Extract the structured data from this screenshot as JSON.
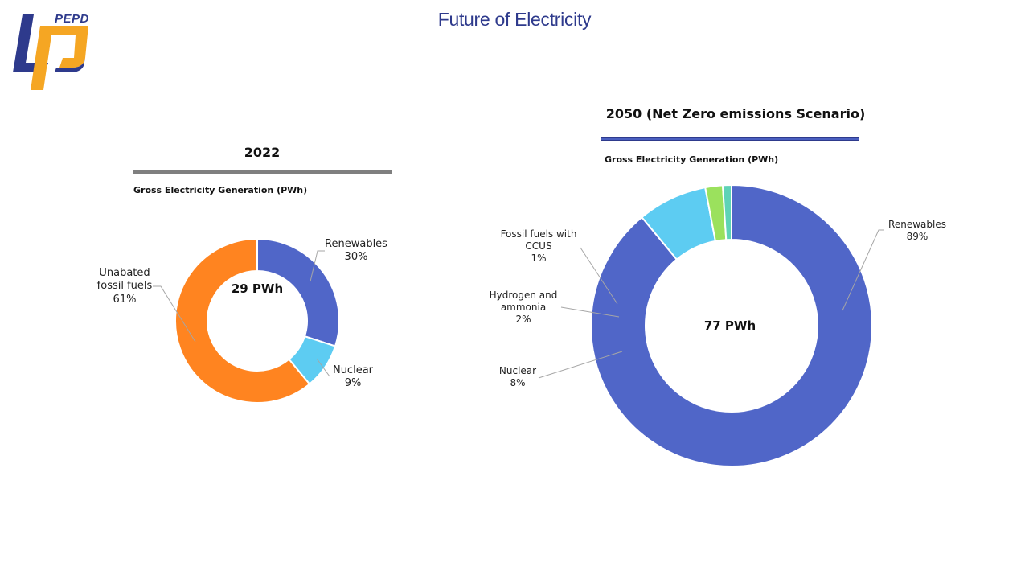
{
  "slide": {
    "title": "Future of Electricity"
  },
  "logo": {
    "text": "PEPD"
  },
  "colors": {
    "renewables": "#5066C8",
    "nuclear": "#5DCCF2",
    "fossil": "#FF8420",
    "hydrogen": "#9BE15D",
    "ccus": "#5ED3B6",
    "leader": "#A6A6A6"
  },
  "chart_data": [
    {
      "type": "pie",
      "variant": "donut",
      "title": "2022",
      "subtitle": "Gross Electricity Generation (PWh)",
      "center_label": "29 PWh",
      "slices": [
        {
          "name": "Renewables",
          "value": 30,
          "label": "30%"
        },
        {
          "name": "Nuclear",
          "value": 9,
          "label": "9%"
        },
        {
          "name": "Unabated fossil fuels",
          "value": 61,
          "label": "61%"
        }
      ]
    },
    {
      "type": "pie",
      "variant": "donut",
      "title": "2050 (Net Zero emissions Scenario)",
      "subtitle": "Gross Electricity Generation (PWh)",
      "center_label": "77 PWh",
      "slices": [
        {
          "name": "Renewables",
          "value": 89,
          "label": "89%"
        },
        {
          "name": "Nuclear",
          "value": 8,
          "label": "8%"
        },
        {
          "name": "Hydrogen and ammonia",
          "value": 2,
          "label": "2%"
        },
        {
          "name": "Fossil fuels with CCUS",
          "value": 1,
          "label": "1%"
        }
      ]
    }
  ],
  "labels": {
    "c1": {
      "renewables": {
        "l1": "Renewables",
        "pct": "30%"
      },
      "nuclear": {
        "l1": "Nuclear",
        "pct": "9%"
      },
      "fossil": {
        "l1": "Unabated",
        "l2": "fossil fuels",
        "pct": "61%"
      }
    },
    "c2": {
      "renewables": {
        "l1": "Renewables",
        "pct": "89%"
      },
      "nuclear": {
        "l1": "Nuclear",
        "pct": "8%"
      },
      "hydrogen": {
        "l1": "Hydrogen and",
        "l2": "ammonia",
        "pct": "2%"
      },
      "ccus": {
        "l1": "Fossil fuels with",
        "l2": "CCUS",
        "pct": "1%"
      }
    }
  }
}
